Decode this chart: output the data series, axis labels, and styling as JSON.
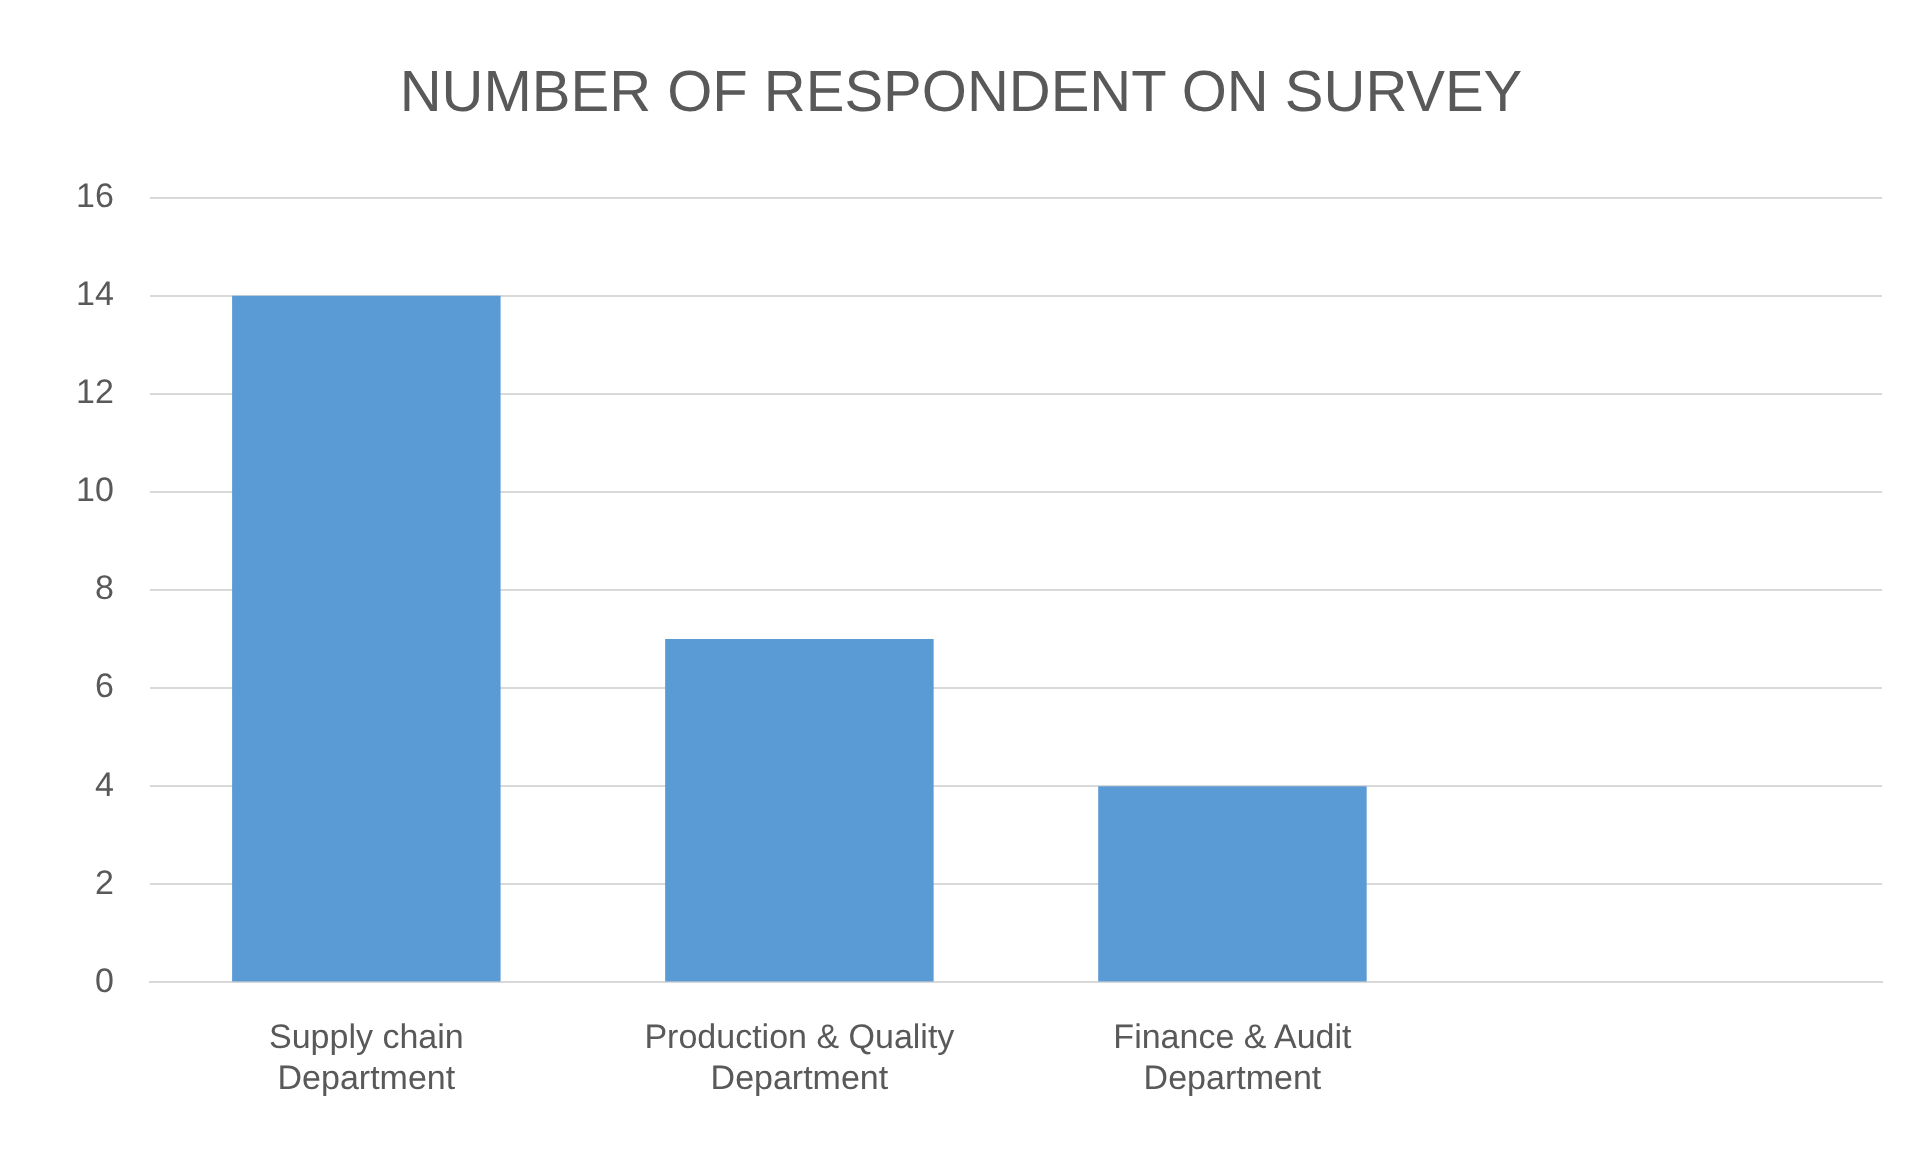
{
  "chart_data": {
    "type": "bar",
    "title": "NUMBER OF RESPONDENT ON SURVEY",
    "categories": [
      "Supply chain Department",
      "Production & Quality Department",
      "Finance & Audit Department",
      null
    ],
    "values": [
      14,
      7,
      4,
      null
    ],
    "color": "#5b9bd5",
    "ylim": [
      0,
      16
    ],
    "yticks": [
      0,
      2,
      4,
      6,
      8,
      10,
      12,
      14,
      16
    ],
    "grid": "y",
    "legend": false
  }
}
